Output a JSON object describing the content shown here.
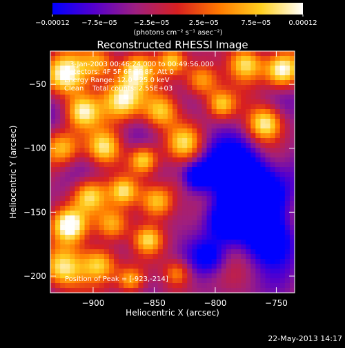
{
  "chart_data": {
    "type": "heatmap",
    "title": "Reconstructed RHESSI Image",
    "xlabel": "Heliocentric X (arcsec)",
    "ylabel": "Heliocentric Y (arcsec)",
    "xlim": [
      -935,
      -735
    ],
    "ylim": [
      -213,
      -24
    ],
    "xticks": [
      -900,
      -850,
      -800,
      -750
    ],
    "yticks": [
      -50,
      -100,
      -150,
      -200
    ],
    "xtick_labels": [
      "−900",
      "−850",
      "−800",
      "−750"
    ],
    "ytick_labels": [
      "−50",
      "−100",
      "−150",
      "−200"
    ],
    "colorbar": {
      "range": [
        -0.00012,
        0.00012
      ],
      "ticks": [
        -0.00012,
        -7.5e-05,
        -2.5e-05,
        2.5e-05,
        7.5e-05,
        0.00012
      ],
      "tick_labels": [
        "−0.00012",
        "−7.5e−05",
        "−2.5e−05",
        "2.5e−05",
        "7.5e−05",
        "0.00012"
      ],
      "units_label": "(photons cm⁻² s⁻¹ asec⁻²)",
      "colors": [
        "#0000ff",
        "#5500cc",
        "#9f1f7f",
        "#d82020",
        "#ff7a00",
        "#ffd020",
        "#ffffff"
      ]
    },
    "annotations": [
      "3-Jan-2003 00:46:24.000 to 00:49:56.000",
      "Detectors: 4F 5F 6F 7F 8F, Att 0",
      "Energy Range: 12.0 - 25.0 keV",
      "Clean    Total counts: 2.55E+03"
    ],
    "peak_label": "Position of Peak = [-923,-214]",
    "peak": [
      -923,
      -214
    ],
    "grid": false
  },
  "footer": {
    "timestamp": "22-May-2013 14:17"
  }
}
